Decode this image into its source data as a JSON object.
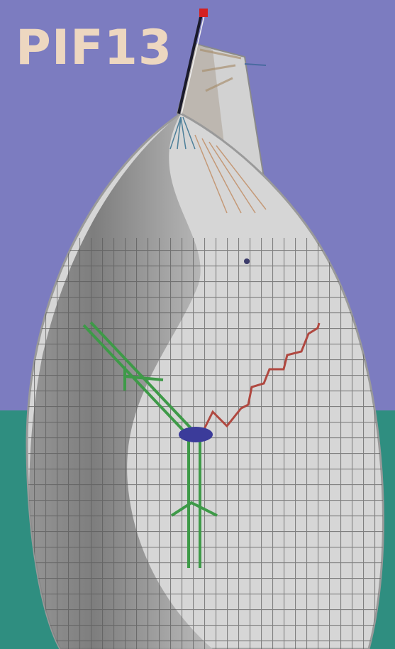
{
  "title": "PIF13",
  "colors": {
    "sky": "#7c7cc0",
    "ground": "#2f8e80",
    "canopy_light": "#d6d6d6",
    "canopy_dark": "#9a9a9a",
    "harness": "#3e9a48",
    "spring": "#b04840",
    "pilot": "#3b3b9a"
  },
  "icons": {
    "flag": "red-flag-icon"
  }
}
